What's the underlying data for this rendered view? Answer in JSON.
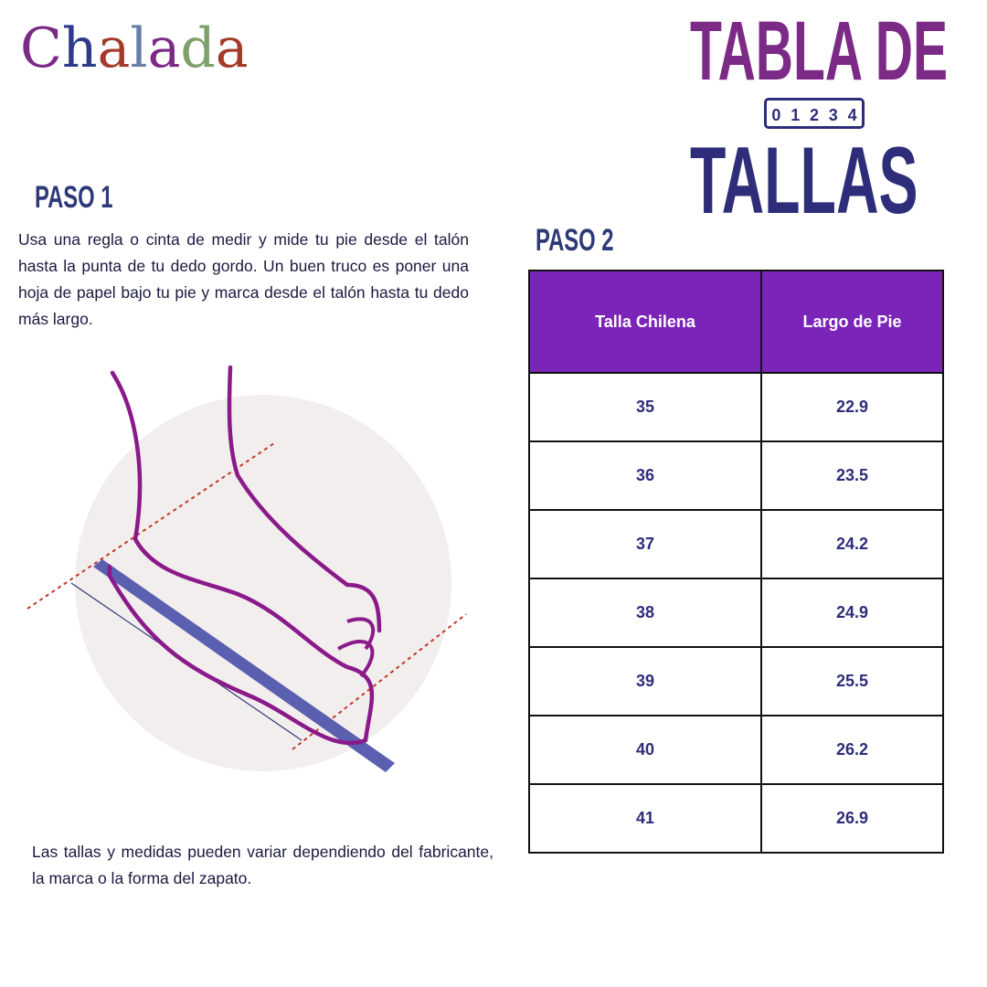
{
  "logo": {
    "text": "Chalada",
    "letters": [
      "C",
      "h",
      "a",
      "l",
      "a",
      "d",
      "a"
    ],
    "colors": [
      "#7b2a86",
      "#2e3a8a",
      "#a33a2a",
      "#6a7fa8",
      "#7b2a86",
      "#7ea06a",
      "#a33a2a"
    ]
  },
  "title": {
    "line1": "TABLA DE",
    "line2": "TALLAS",
    "ruler_digits": [
      "0",
      "1",
      "2",
      "3",
      "4"
    ]
  },
  "step1": {
    "heading": "PASO 1",
    "text": "Usa una regla o cinta de medir y mide tu pie desde el talón hasta la punta de tu dedo gordo. Un buen truco es poner una hoja de papel bajo tu pie y marca desde el talón hasta tu dedo más largo."
  },
  "step2": {
    "heading": "PASO 2"
  },
  "table": {
    "headers": [
      "Talla Chilena",
      "Largo de Pie"
    ],
    "rows": [
      [
        "35",
        "22.9"
      ],
      [
        "36",
        "23.5"
      ],
      [
        "37",
        "24.2"
      ],
      [
        "38",
        "24.9"
      ],
      [
        "39",
        "25.5"
      ],
      [
        "40",
        "26.2"
      ],
      [
        "41",
        "26.9"
      ]
    ]
  },
  "note": "Las tallas y medidas pueden variar dependiendo del fabricante, la marca o la forma del zapato.",
  "colors": {
    "purple": "#7b24b8",
    "navy": "#2e2d7a",
    "magenta": "#8a1a8a",
    "ruler": "#5a5fb0"
  }
}
